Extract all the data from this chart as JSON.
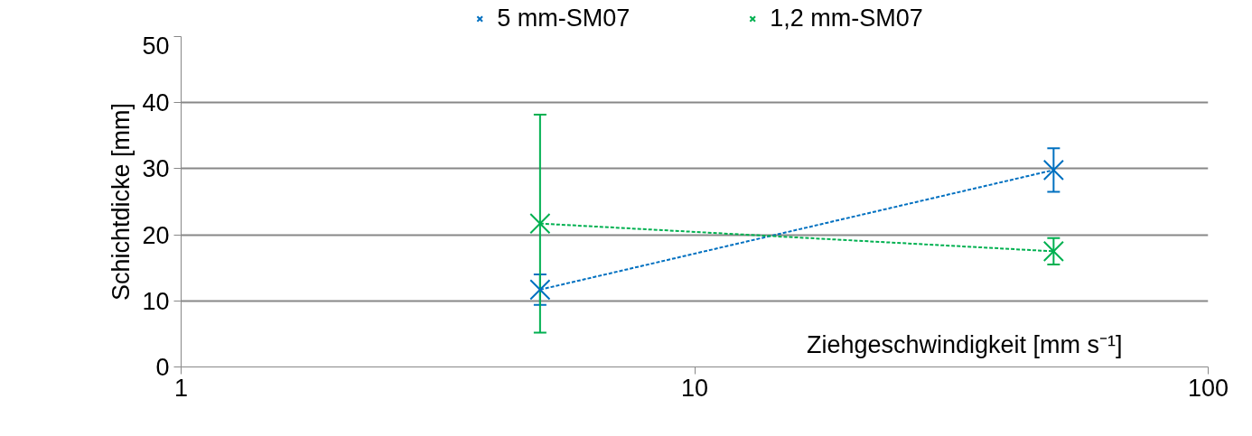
{
  "chart_data": {
    "type": "line",
    "xlabel": "Ziehgeschwindigkeit [mm s⁻¹]",
    "ylabel": "Schichtdicke [mm]",
    "x": [
      5,
      50
    ],
    "series": [
      {
        "name": "5 mm-SM07",
        "color": "#0070c0",
        "values": [
          11.7,
          29.8
        ],
        "errors": [
          2.3,
          3.3
        ]
      },
      {
        "name": "1,2 mm-SM07",
        "color": "#00b050",
        "values": [
          21.7,
          17.5
        ],
        "errors": [
          16.5,
          2.0
        ]
      }
    ],
    "log": "x",
    "xlim": [
      1,
      100
    ],
    "xticks": [
      1,
      10,
      100
    ],
    "ylim": [
      0,
      50
    ],
    "yticks": [
      0,
      10,
      20,
      30,
      40,
      50
    ],
    "grid": "y",
    "legend": "top",
    "marker": "cross",
    "line_style": "dashed"
  }
}
